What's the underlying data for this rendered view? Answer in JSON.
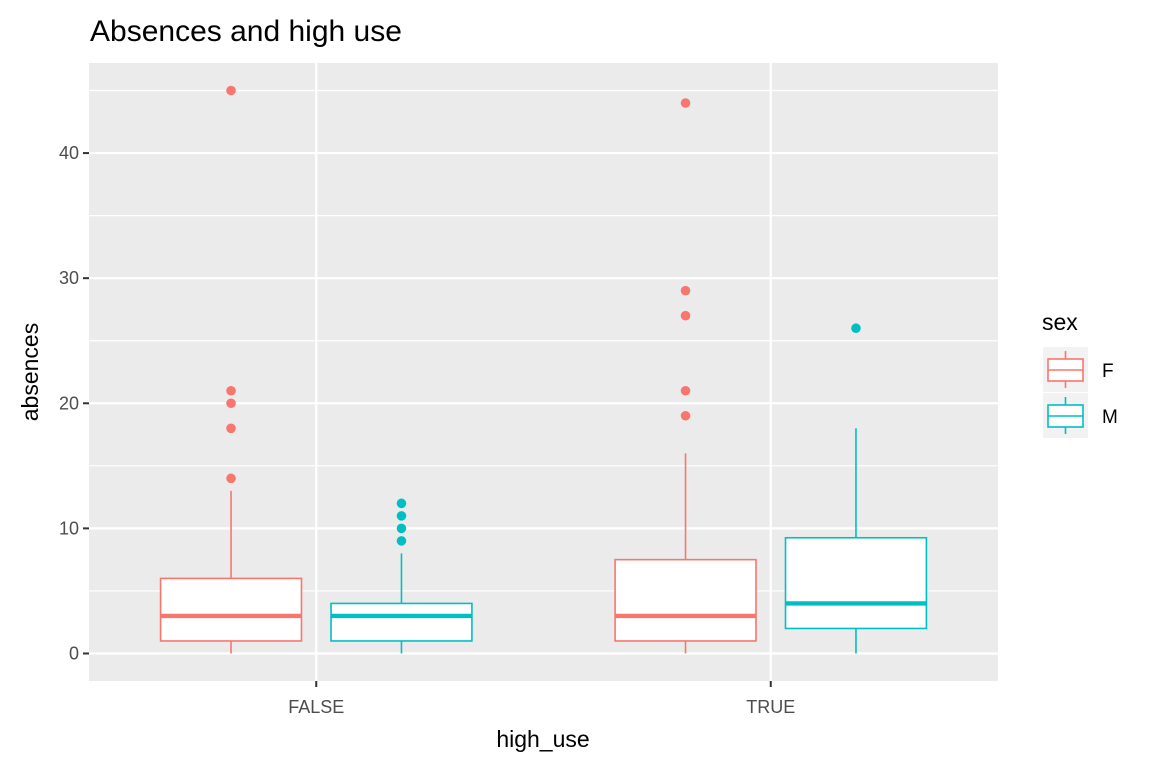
{
  "chart_data": {
    "type": "boxplot",
    "title": "Absences and high use",
    "xlabel": "high_use",
    "ylabel": "absences",
    "categories": [
      "FALSE",
      "TRUE"
    ],
    "ylim": [
      -2.2,
      47.2
    ],
    "yticks": [
      0,
      10,
      20,
      30,
      40
    ],
    "grid": true,
    "legend": {
      "title": "sex",
      "position": "right"
    },
    "series": [
      {
        "name": "F",
        "color": "#F8766D",
        "boxes": [
          {
            "category": "FALSE",
            "lower_whisker": 0,
            "q1": 1,
            "median": 3,
            "q3": 6,
            "upper_whisker": 13,
            "outliers": [
              14,
              18,
              20,
              21,
              45
            ]
          },
          {
            "category": "TRUE",
            "lower_whisker": 0,
            "q1": 1,
            "median": 3,
            "q3": 7.5,
            "upper_whisker": 16,
            "outliers": [
              19,
              21,
              27,
              29,
              44
            ]
          }
        ]
      },
      {
        "name": "M",
        "color": "#00BFC4",
        "boxes": [
          {
            "category": "FALSE",
            "lower_whisker": 0,
            "q1": 1,
            "median": 3,
            "q3": 4,
            "upper_whisker": 8,
            "outliers": [
              9,
              10,
              11,
              12
            ]
          },
          {
            "category": "TRUE",
            "lower_whisker": 0,
            "q1": 2,
            "median": 4,
            "q3": 9.25,
            "upper_whisker": 18,
            "outliers": [
              26
            ]
          }
        ]
      }
    ]
  }
}
